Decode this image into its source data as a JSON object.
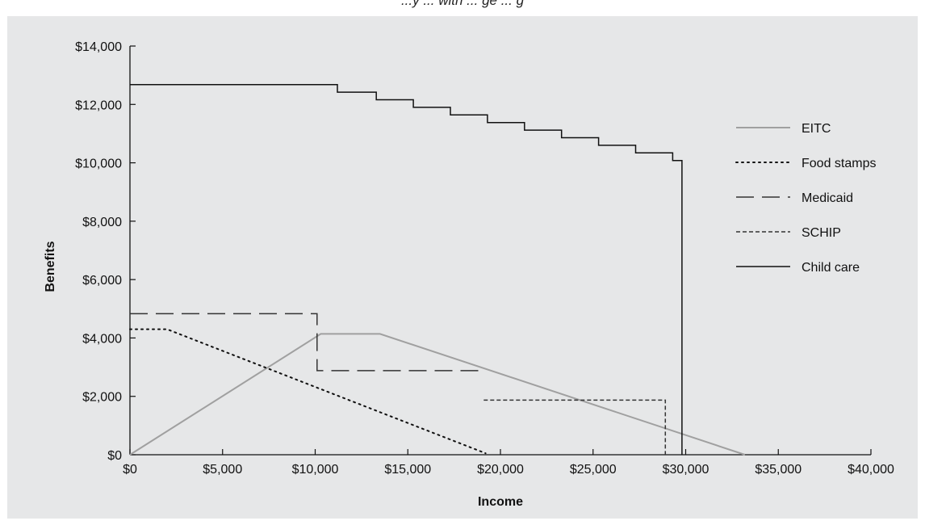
{
  "caption": "...y ... with ... ge ... g",
  "chart_data": {
    "type": "line",
    "xlabel": "Income",
    "ylabel": "Benefits",
    "xlim": [
      0,
      40000
    ],
    "ylim": [
      0,
      14000
    ],
    "x_ticks": [
      0,
      5000,
      10000,
      15000,
      20000,
      25000,
      30000,
      35000,
      40000
    ],
    "x_tick_labels": [
      "$0",
      "$5,000",
      "$10,000",
      "$15,000",
      "$20,000",
      "$25,000",
      "$30,000",
      "$35,000",
      "$40,000"
    ],
    "y_ticks": [
      0,
      2000,
      4000,
      6000,
      8000,
      10000,
      12000,
      14000
    ],
    "y_tick_labels": [
      "$0",
      "$2,000",
      "$4,000",
      "$6,000",
      "$8,000",
      "$10,000",
      "$12,000",
      "$14,000"
    ],
    "grid": false,
    "legend_position": "right",
    "series": [
      {
        "name": "EITC",
        "color": "#a0a0a0",
        "style": "solid",
        "points": [
          [
            0,
            0
          ],
          [
            10300,
            4140
          ],
          [
            13500,
            4140
          ],
          [
            33200,
            0
          ]
        ]
      },
      {
        "name": "Food stamps",
        "color": "#111111",
        "style": "dotted",
        "points": [
          [
            0,
            4300
          ],
          [
            2000,
            4300
          ],
          [
            19200,
            50
          ]
        ]
      },
      {
        "name": "Medicaid",
        "color": "#333333",
        "style": "longdash",
        "points": [
          [
            0,
            4830
          ],
          [
            10100,
            4830
          ],
          [
            10100,
            2880
          ],
          [
            19200,
            2880
          ]
        ]
      },
      {
        "name": "SCHIP",
        "color": "#333333",
        "style": "shortdash",
        "points": [
          [
            19100,
            1870
          ],
          [
            28900,
            1870
          ],
          [
            28900,
            0
          ]
        ]
      },
      {
        "name": "Child care",
        "color": "#111111",
        "style": "solid",
        "points": [
          [
            0,
            12680
          ],
          [
            11200,
            12680
          ],
          [
            11200,
            12420
          ],
          [
            13300,
            12420
          ],
          [
            13300,
            12160
          ],
          [
            15300,
            12160
          ],
          [
            15300,
            11900
          ],
          [
            17300,
            11900
          ],
          [
            17300,
            11640
          ],
          [
            19300,
            11640
          ],
          [
            19300,
            11380
          ],
          [
            21300,
            11380
          ],
          [
            21300,
            11120
          ],
          [
            23300,
            11120
          ],
          [
            23300,
            10860
          ],
          [
            25300,
            10860
          ],
          [
            25300,
            10600
          ],
          [
            27300,
            10600
          ],
          [
            27300,
            10340
          ],
          [
            29300,
            10340
          ],
          [
            29300,
            10080
          ],
          [
            29800,
            10080
          ],
          [
            29800,
            0
          ]
        ]
      }
    ]
  }
}
